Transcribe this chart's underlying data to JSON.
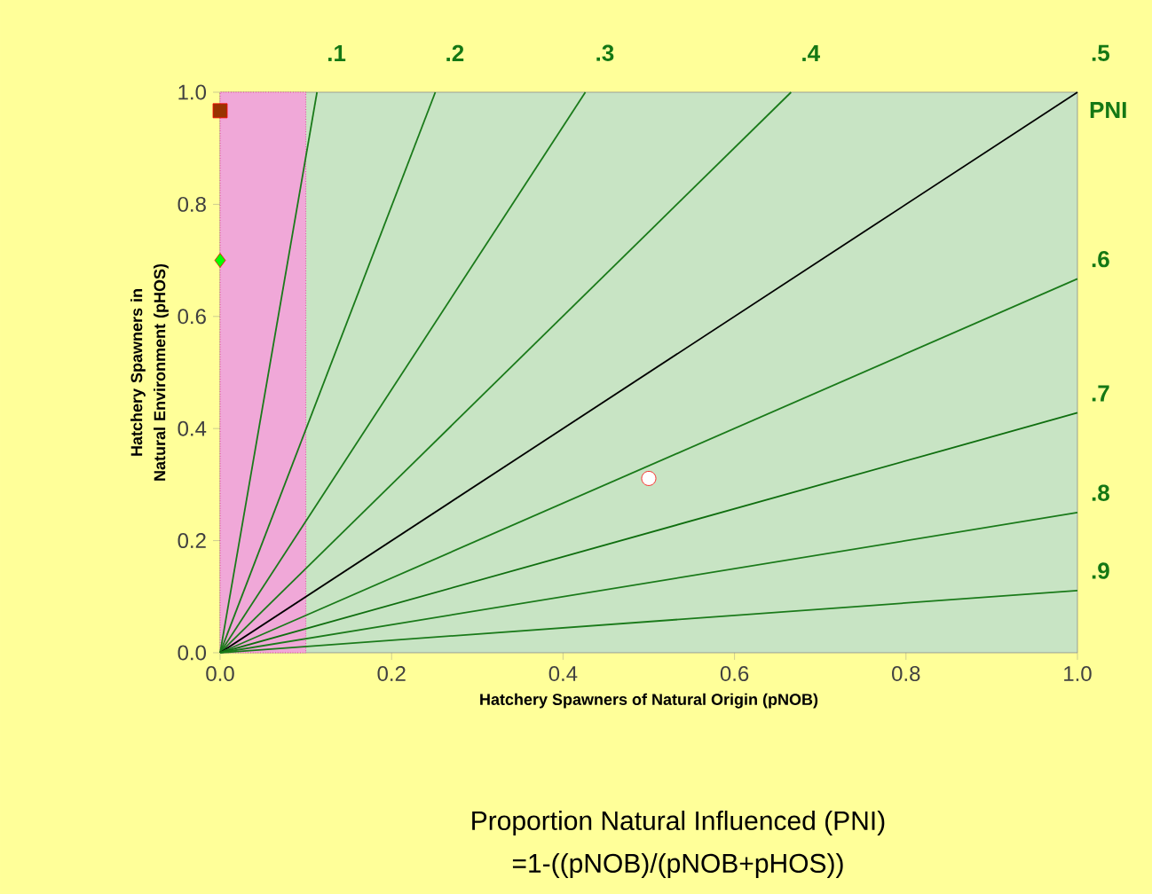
{
  "chart_data": {
    "type": "line",
    "title": "Proportion Natural Influenced (PNI)",
    "subtitle": "=1-((pNOB)/(pNOB+pHOS))",
    "xlabel": "Hatchery Spawners of Natural Origin (pNOB)",
    "ylabel": "Hatchery  Spawners in Natural Environment (pHOS)",
    "xlim": [
      0,
      1
    ],
    "ylim": [
      0,
      1
    ],
    "xticks": [
      {
        "value": 0,
        "label": "0.0"
      },
      {
        "value": 0.2,
        "label": "0.2"
      },
      {
        "value": 0.4,
        "label": "0.4"
      },
      {
        "value": 0.6,
        "label": "0.6"
      },
      {
        "value": 0.8,
        "label": "0.8"
      },
      {
        "value": 1,
        "label": "1.0"
      }
    ],
    "yticks": [
      {
        "value": 0,
        "label": "0.0"
      },
      {
        "value": 0.2,
        "label": "0.2"
      },
      {
        "value": 0.4,
        "label": "0.4"
      },
      {
        "value": 0.6,
        "label": "0.6"
      },
      {
        "value": 0.8,
        "label": "0.8"
      },
      {
        "value": 1,
        "label": "1.0"
      }
    ],
    "annotations": [
      {
        "text": ".1",
        "x": 0.113,
        "y": 1
      },
      {
        "text": ".2",
        "x": 0.251,
        "y": 1
      },
      {
        "text": ".3",
        "x": 0.426,
        "y": 1
      },
      {
        "text": ".4",
        "x": 0.666,
        "y": 1
      },
      {
        "text": ".5",
        "x": 1,
        "y": 1
      },
      "PNI",
      {
        "text": ".6",
        "x": 1,
        "y": 0.667
      },
      {
        "text": ".7",
        "x": 1,
        "y": 0.428
      },
      {
        "text": ".8",
        "x": 1,
        "y": 0.25
      },
      {
        "text": ".9",
        "x": 1,
        "y": 0.111
      }
    ],
    "bands": [
      {
        "axis": "x",
        "from": 0,
        "to": 0.1,
        "color": "#f0a8d8"
      }
    ],
    "series": [
      {
        "color": "#1a7a1a",
        "x": [
          0,
          0.113
        ],
        "values": [
          0,
          1
        ]
      },
      {
        "color": "#1a7a1a",
        "x": [
          0,
          0.251
        ],
        "values": [
          0,
          1
        ]
      },
      {
        "color": "#1a7a1a",
        "x": [
          0,
          0.426
        ],
        "values": [
          0,
          1
        ]
      },
      {
        "color": "#1a7a1a",
        "x": [
          0,
          0.666
        ],
        "values": [
          0,
          1
        ]
      },
      {
        "color": "#000000",
        "x": [
          0,
          1
        ],
        "values": [
          0,
          1
        ]
      },
      {
        "color": "#1a7a1a",
        "x": [
          0,
          1
        ],
        "values": [
          0,
          0.667
        ]
      },
      {
        "color": "#0f6e0f",
        "x": [
          0,
          1
        ],
        "values": [
          0,
          0.428
        ]
      },
      {
        "color": "#1a7a1a",
        "x": [
          0,
          1
        ],
        "values": [
          0,
          0.25
        ]
      },
      {
        "color": "#1a7a1a",
        "x": [
          0,
          1
        ],
        "values": [
          0,
          0.111
        ]
      },
      {
        "type": "scatter",
        "marker": "square",
        "color": "#993300",
        "x": [
          0
        ],
        "values": [
          0.967
        ]
      },
      {
        "type": "scatter",
        "marker": "diamond",
        "color": "#00ff00",
        "x": [
          0
        ],
        "values": [
          0.7
        ]
      },
      {
        "type": "scatter",
        "marker": "circle",
        "color": "#ffffff",
        "x": [
          0.5
        ],
        "values": [
          0.311
        ]
      }
    ]
  }
}
